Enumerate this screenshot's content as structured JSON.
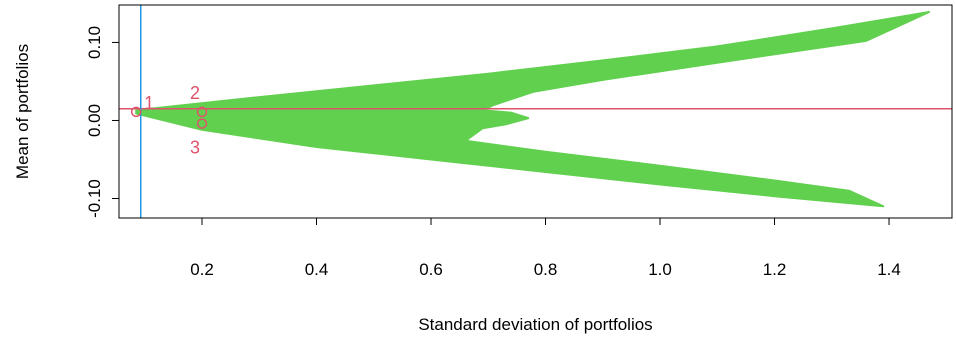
{
  "chart_data": {
    "type": "scatter",
    "title": "",
    "xlabel": "Standard deviation of portfolios",
    "ylabel": "Mean of portfolios",
    "xlim": [
      0.055,
      1.51
    ],
    "ylim": [
      -0.125,
      0.148
    ],
    "xticks": [
      0.2,
      0.4,
      0.6,
      0.8,
      1.0,
      1.2,
      1.4
    ],
    "xtick_labels": [
      "0.2",
      "0.4",
      "0.6",
      "0.8",
      "1.0",
      "1.2",
      "1.4"
    ],
    "yticks": [
      -0.1,
      0.0,
      0.1
    ],
    "ytick_labels": [
      "-0.10",
      "0.00",
      "0.10"
    ],
    "grid": false,
    "colors": {
      "cloud": "#61D04F",
      "marker": "#DF536B",
      "vline": "#2297E6",
      "axes": "#000000"
    },
    "cloud": {
      "upper_edge": [
        [
          0.085,
          0.013
        ],
        [
          0.3,
          0.03
        ],
        [
          0.5,
          0.045
        ],
        [
          0.7,
          0.06
        ],
        [
          0.9,
          0.077
        ],
        [
          1.1,
          0.095
        ],
        [
          1.3,
          0.118
        ],
        [
          1.47,
          0.139
        ]
      ],
      "upper_inner_edge": [
        [
          1.36,
          0.102
        ],
        [
          1.1,
          0.074
        ],
        [
          0.9,
          0.052
        ],
        [
          0.78,
          0.037
        ],
        [
          0.73,
          0.025
        ],
        [
          0.71,
          0.02
        ]
      ],
      "middle_bulge": [
        [
          0.71,
          0.02
        ],
        [
          0.69,
          0.013
        ],
        [
          0.74,
          0.01
        ],
        [
          0.77,
          0.003
        ],
        [
          0.73,
          -0.005
        ],
        [
          0.69,
          -0.01
        ],
        [
          0.66,
          -0.026
        ]
      ],
      "lower_inner_edge": [
        [
          0.66,
          -0.026
        ],
        [
          0.8,
          -0.04
        ],
        [
          1.0,
          -0.058
        ],
        [
          1.2,
          -0.077
        ],
        [
          1.33,
          -0.09
        ]
      ],
      "lower_edge": [
        [
          1.39,
          -0.11
        ],
        [
          1.2,
          -0.097
        ],
        [
          1.0,
          -0.082
        ],
        [
          0.8,
          -0.066
        ],
        [
          0.6,
          -0.05
        ],
        [
          0.4,
          -0.034
        ],
        [
          0.2,
          -0.012
        ],
        [
          0.085,
          0.009
        ]
      ]
    },
    "hline": {
      "y": 0.015
    },
    "vline": {
      "x": 0.093
    },
    "points": [
      {
        "label": "1",
        "x": 0.085,
        "y": 0.011
      },
      {
        "label": "2",
        "x": 0.2,
        "y": 0.011
      },
      {
        "label": "3",
        "x": 0.2,
        "y": -0.004
      }
    ]
  }
}
